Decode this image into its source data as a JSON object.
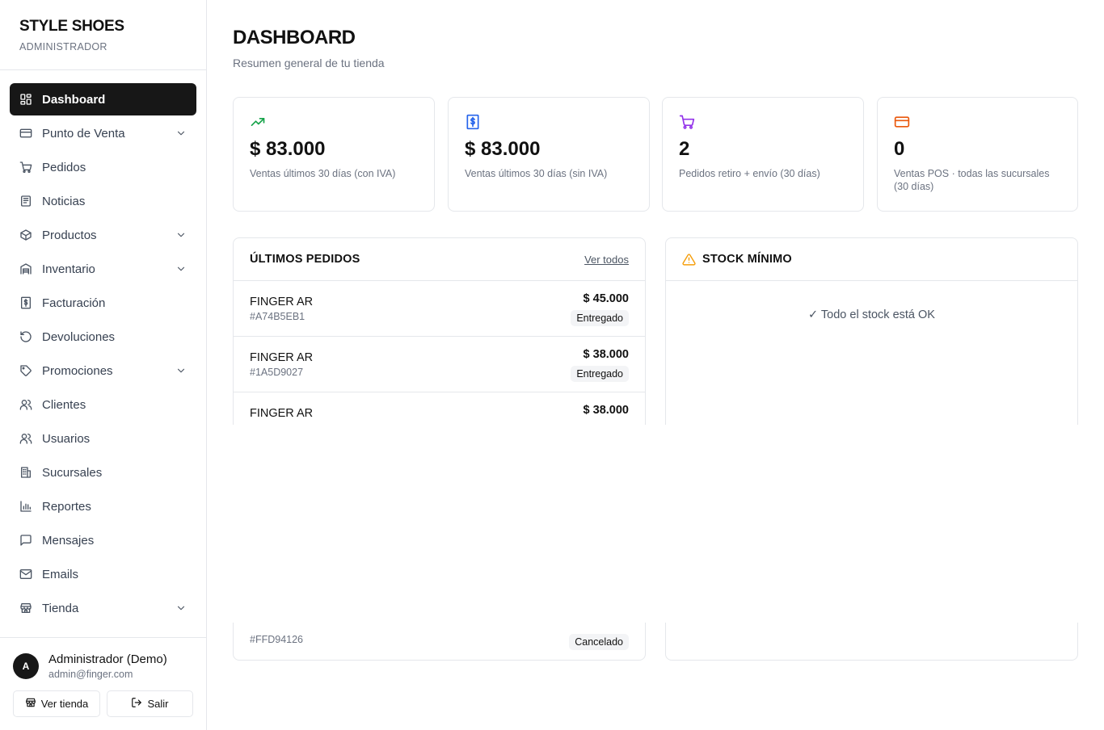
{
  "brand": {
    "title": "STYLE SHOES",
    "subtitle": "ADMINISTRADOR"
  },
  "nav": [
    {
      "label": "Dashboard",
      "icon": "dashboard-icon",
      "active": true
    },
    {
      "label": "Punto de Venta",
      "icon": "credit-card-icon",
      "expandable": true
    },
    {
      "label": "Pedidos",
      "icon": "cart-icon"
    },
    {
      "label": "Noticias",
      "icon": "newspaper-icon"
    },
    {
      "label": "Productos",
      "icon": "box-icon",
      "expandable": true
    },
    {
      "label": "Inventario",
      "icon": "warehouse-icon",
      "expandable": true
    },
    {
      "label": "Facturación",
      "icon": "invoice-icon"
    },
    {
      "label": "Devoluciones",
      "icon": "undo-icon"
    },
    {
      "label": "Promociones",
      "icon": "tag-icon",
      "expandable": true
    },
    {
      "label": "Clientes",
      "icon": "users-icon"
    },
    {
      "label": "Usuarios",
      "icon": "users-icon"
    },
    {
      "label": "Sucursales",
      "icon": "building-icon"
    },
    {
      "label": "Reportes",
      "icon": "bar-chart-icon"
    },
    {
      "label": "Mensajes",
      "icon": "message-icon"
    },
    {
      "label": "Emails",
      "icon": "mail-icon"
    },
    {
      "label": "Tienda",
      "icon": "store-icon",
      "expandable": true
    }
  ],
  "user": {
    "initial": "A",
    "name": "Administrador (Demo)",
    "email": "admin@finger.com",
    "view_store_label": "Ver tienda",
    "logout_label": "Salir"
  },
  "header": {
    "title": "DASHBOARD",
    "subtitle": "Resumen general de tu tienda"
  },
  "stats": [
    {
      "value": "$ 83.000",
      "label": "Ventas últimos 30 días (con IVA)",
      "icon": "trending-up-icon",
      "color": "#16a34a"
    },
    {
      "value": "$ 83.000",
      "label": "Ventas últimos 30 días (sin IVA)",
      "icon": "dollar-receipt-icon",
      "color": "#2563eb"
    },
    {
      "value": "2",
      "label": "Pedidos retiro + envío (30 días)",
      "icon": "cart-icon",
      "color": "#9333ea"
    },
    {
      "value": "0",
      "label": "Ventas POS · todas las sucursales (30 días)",
      "icon": "credit-card-icon",
      "color": "#ea580c"
    }
  ],
  "orders_panel": {
    "title": "ÚLTIMOS PEDIDOS",
    "link_label": "Ver todos",
    "orders": [
      {
        "name": "FINGER AR",
        "id": "#A74B5EB1",
        "amount": "$ 45.000",
        "status": "Entregado"
      },
      {
        "name": "FINGER AR",
        "id": "#1A5D9027",
        "amount": "$ 38.000",
        "status": "Entregado"
      },
      {
        "name": "FINGER AR",
        "id": "",
        "amount": "$ 38.000",
        "status": ""
      }
    ],
    "last_visible": {
      "id": "#FFD94126",
      "status": "Cancelado"
    }
  },
  "stock_panel": {
    "title": "STOCK MÍNIMO",
    "icon": "warning-icon",
    "message": "✓ Todo el stock está OK"
  }
}
